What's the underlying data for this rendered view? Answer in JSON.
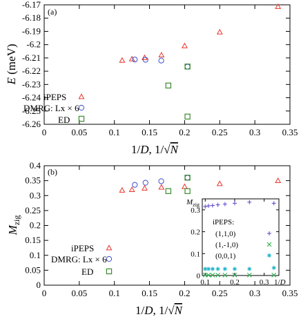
{
  "chart_data": [
    {
      "type": "scatter",
      "panel_label": "(a)",
      "xlabel": "1/D, 1/√N",
      "ylabel": "E (meV)",
      "xlim": [
        0,
        0.35
      ],
      "ylim": [
        -6.26,
        -6.17
      ],
      "xticks": [
        0,
        0.05,
        0.1,
        0.15,
        0.2,
        0.25,
        0.3,
        0.35
      ],
      "xtick_labels": [
        "0",
        "0.05",
        "0.1",
        "0.15",
        "0.2",
        "0.25",
        "0.3",
        "0.35"
      ],
      "yticks": [
        -6.26,
        -6.25,
        -6.24,
        -6.23,
        -6.22,
        -6.21,
        -6.2,
        -6.19,
        -6.18,
        -6.17
      ],
      "ytick_labels": [
        "-6.26",
        "-6.25",
        "-6.24",
        "-6.23",
        "-6.22",
        "-6.21",
        "-6.2",
        "-6.19",
        "-6.18",
        "-6.17"
      ],
      "legend_position": "bottom-left",
      "series": [
        {
          "name": "iPEPS",
          "marker": "triangle",
          "color": "#e8332a",
          "x": [
            0.111,
            0.125,
            0.143,
            0.167,
            0.2,
            0.25,
            0.333
          ],
          "y": [
            -6.2118,
            -6.2108,
            -6.2098,
            -6.2078,
            -6.2009,
            -6.1905,
            -6.1713
          ]
        },
        {
          "name": "DMRG: Lx × 6",
          "marker": "circle",
          "color": "#3a4fd0",
          "x": [
            0.1291,
            0.1443,
            0.1667,
            0.2041
          ],
          "y": [
            -6.2112,
            -6.2114,
            -6.212,
            -6.2166
          ]
        },
        {
          "name": "ED",
          "marker": "square",
          "color": "#3a8a2e",
          "x": [
            0.1768,
            0.2041,
            0.2041
          ],
          "y": [
            -6.2308,
            -6.2165,
            -6.2542
          ]
        }
      ]
    },
    {
      "type": "scatter",
      "panel_label": "(b)",
      "xlabel": "1/D, 1/√N",
      "ylabel": "Mzig",
      "xlim": [
        0,
        0.35
      ],
      "ylim": [
        0,
        0.4
      ],
      "xticks": [
        0,
        0.05,
        0.1,
        0.15,
        0.2,
        0.25,
        0.3,
        0.35
      ],
      "xtick_labels": [
        "0",
        "0.05",
        "0.1",
        "0.15",
        "0.2",
        "0.25",
        "0.3",
        "0.35"
      ],
      "yticks": [
        0,
        0.05,
        0.1,
        0.15,
        0.2,
        0.25,
        0.3,
        0.35,
        0.4
      ],
      "ytick_labels": [
        "0",
        "0.05",
        "0.1",
        "0.15",
        "0.2",
        "0.25",
        "0.3",
        "0.35",
        "0.4"
      ],
      "legend_position": "bottom-left",
      "series": [
        {
          "name": "iPEPS",
          "marker": "triangle",
          "color": "#e8332a",
          "x": [
            0.111,
            0.125,
            0.143,
            0.167,
            0.2,
            0.25,
            0.333
          ],
          "y": [
            0.318,
            0.32,
            0.325,
            0.328,
            0.33,
            0.34,
            0.35
          ]
        },
        {
          "name": "DMRG: Lx × 6",
          "marker": "circle",
          "color": "#3a4fd0",
          "x": [
            0.1291,
            0.1443,
            0.1667,
            0.2041
          ],
          "y": [
            0.336,
            0.343,
            0.348,
            0.36
          ]
        },
        {
          "name": "ED",
          "marker": "square",
          "color": "#3a8a2e",
          "x": [
            0.1768,
            0.2041,
            0.2041
          ],
          "y": [
            0.315,
            0.36,
            0.315
          ]
        }
      ]
    },
    {
      "type": "scatter",
      "panel_label": "",
      "xlabel": "1/D",
      "ylabel": "Mzig",
      "xlim": [
        0.09,
        0.35
      ],
      "ylim": [
        0,
        0.35
      ],
      "xticks": [
        0.1,
        0.2,
        0.3
      ],
      "xtick_labels": [
        "0.1",
        "0.2",
        "0.3"
      ],
      "yticks": [
        0,
        0.1,
        0.2,
        0.3
      ],
      "ytick_labels": [
        "0",
        "0.1",
        "0.2",
        "0.3"
      ],
      "legend_title": "iPEPS:",
      "legend_position": "right",
      "series": [
        {
          "name": "(1,1,0)",
          "marker": "plus",
          "color": "#5a3fd0",
          "x": [
            0.1,
            0.111,
            0.125,
            0.143,
            0.167,
            0.2,
            0.25,
            0.333
          ],
          "y": [
            0.315,
            0.318,
            0.32,
            0.323,
            0.326,
            0.33,
            0.335,
            0.33
          ]
        },
        {
          "name": "(1,-1,0)",
          "marker": "cross",
          "color": "#22aa44",
          "x": [
            0.1,
            0.111,
            0.125,
            0.143,
            0.167,
            0.2,
            0.25,
            0.333
          ],
          "y": [
            0.002,
            0.002,
            0.002,
            0.002,
            0.002,
            0.002,
            0.002,
            0.002
          ]
        },
        {
          "name": "(0,0,1)",
          "marker": "star",
          "color": "#1fb5c8",
          "x": [
            0.1,
            0.111,
            0.125,
            0.143,
            0.167,
            0.2,
            0.25,
            0.333
          ],
          "y": [
            0.03,
            0.03,
            0.03,
            0.03,
            0.03,
            0.03,
            0.03,
            0.035
          ]
        }
      ]
    }
  ],
  "inset_ylabel_sub": "zig"
}
